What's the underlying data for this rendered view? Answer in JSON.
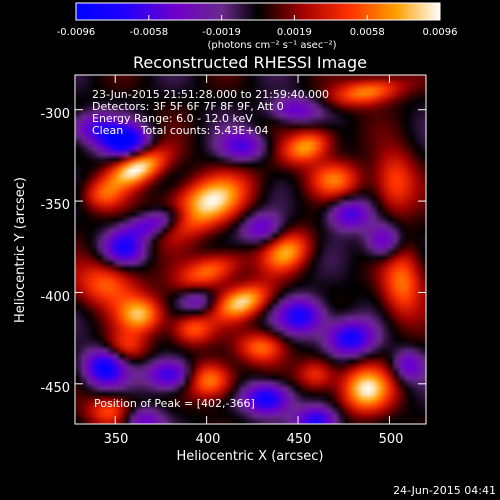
{
  "colorbar": {
    "tick_labels": [
      "-0.0096",
      "-0.0058",
      "-0.0019",
      "0.0019",
      "0.0058",
      "0.0096"
    ],
    "units": "(photons cm⁻² s⁻¹ asec⁻²)",
    "range": [
      -0.0096,
      0.0096
    ]
  },
  "info": {
    "line1": "23-Jun-2015 21:51:28.000 to 21:59:40.000",
    "line2": "Detectors: 3F 5F 6F 7F 8F 9F, Att 0",
    "line3": "Energy Range: 6.0 - 12.0 keV",
    "line4": "Clean     Total counts: 5.43E+04",
    "peak": "Position of Peak = [402,-366]"
  },
  "footer": {
    "date": "24-Jun-2015 04:41"
  },
  "colors": {
    "background": "#000000",
    "text": "#ffffff"
  },
  "chart_data": {
    "type": "heatmap",
    "title": "Reconstructed RHESSI Image",
    "xlabel": "Heliocentric X (arcsec)",
    "ylabel": "Heliocentric Y (arcsec)",
    "xlim": [
      328,
      520
    ],
    "ylim": [
      -472,
      -281
    ],
    "x_ticks": [
      350,
      400,
      450,
      500
    ],
    "y_ticks": [
      -300,
      -350,
      -400,
      -450
    ],
    "grid": false,
    "colorscale": "rainbow-to-hot",
    "peak": [
      402,
      -366
    ],
    "blobs": [
      {
        "x": 362,
        "y": -332,
        "amp": 0.0096,
        "sx": 12,
        "sy": 6,
        "rot": -25
      },
      {
        "x": 398,
        "y": -352,
        "amp": 0.0096,
        "sx": 18,
        "sy": 9,
        "rot": -25
      },
      {
        "x": 455,
        "y": -320,
        "amp": 0.0075,
        "sx": 10,
        "sy": 6,
        "rot": -20
      },
      {
        "x": 488,
        "y": -290,
        "amp": 0.007,
        "sx": 14,
        "sy": 5,
        "rot": -10
      },
      {
        "x": 343,
        "y": -347,
        "amp": 0.0045,
        "sx": 8,
        "sy": 6,
        "rot": 0
      },
      {
        "x": 345,
        "y": -395,
        "amp": 0.0058,
        "sx": 12,
        "sy": 9,
        "rot": 0
      },
      {
        "x": 402,
        "y": -388,
        "amp": 0.0065,
        "sx": 13,
        "sy": 6,
        "rot": -20
      },
      {
        "x": 420,
        "y": -405,
        "amp": 0.0085,
        "sx": 11,
        "sy": 6,
        "rot": -20
      },
      {
        "x": 444,
        "y": -378,
        "amp": 0.0068,
        "sx": 10,
        "sy": 7,
        "rot": -30
      },
      {
        "x": 470,
        "y": -338,
        "amp": 0.0058,
        "sx": 10,
        "sy": 7,
        "rot": 0
      },
      {
        "x": 503,
        "y": -340,
        "amp": 0.0056,
        "sx": 8,
        "sy": 12,
        "rot": 0
      },
      {
        "x": 507,
        "y": -395,
        "amp": 0.0062,
        "sx": 8,
        "sy": 14,
        "rot": 0
      },
      {
        "x": 364,
        "y": -412,
        "amp": 0.0075,
        "sx": 9,
        "sy": 7,
        "rot": 0
      },
      {
        "x": 392,
        "y": -420,
        "amp": 0.0058,
        "sx": 8,
        "sy": 6,
        "rot": 0
      },
      {
        "x": 356,
        "y": -430,
        "amp": 0.0045,
        "sx": 8,
        "sy": 6,
        "rot": 0
      },
      {
        "x": 402,
        "y": -448,
        "amp": 0.0075,
        "sx": 9,
        "sy": 7,
        "rot": 0
      },
      {
        "x": 430,
        "y": -430,
        "amp": 0.0062,
        "sx": 9,
        "sy": 6,
        "rot": 0
      },
      {
        "x": 487,
        "y": -453,
        "amp": 0.0088,
        "sx": 10,
        "sy": 9,
        "rot": 0
      },
      {
        "x": 460,
        "y": -445,
        "amp": 0.005,
        "sx": 7,
        "sy": 6,
        "rot": 0
      },
      {
        "x": 347,
        "y": -465,
        "amp": 0.0055,
        "sx": 9,
        "sy": 6,
        "rot": 0
      },
      {
        "x": 355,
        "y": -317,
        "amp": -0.0096,
        "sx": 9,
        "sy": 6,
        "rot": 0
      },
      {
        "x": 338,
        "y": -310,
        "amp": -0.0055,
        "sx": 9,
        "sy": 6,
        "rot": 0
      },
      {
        "x": 372,
        "y": -362,
        "amp": -0.007,
        "sx": 14,
        "sy": 5,
        "rot": -20
      },
      {
        "x": 420,
        "y": -320,
        "amp": -0.0055,
        "sx": 9,
        "sy": 6,
        "rot": 0
      },
      {
        "x": 448,
        "y": -300,
        "amp": -0.005,
        "sx": 10,
        "sy": 5,
        "rot": 0
      },
      {
        "x": 478,
        "y": -357,
        "amp": -0.006,
        "sx": 8,
        "sy": 6,
        "rot": 0
      },
      {
        "x": 430,
        "y": -365,
        "amp": -0.005,
        "sx": 8,
        "sy": 6,
        "rot": 0
      },
      {
        "x": 452,
        "y": -413,
        "amp": -0.0075,
        "sx": 9,
        "sy": 7,
        "rot": 0
      },
      {
        "x": 478,
        "y": -425,
        "amp": -0.008,
        "sx": 9,
        "sy": 7,
        "rot": 0
      },
      {
        "x": 433,
        "y": -458,
        "amp": -0.0088,
        "sx": 9,
        "sy": 6,
        "rot": 0
      },
      {
        "x": 380,
        "y": -445,
        "amp": -0.0075,
        "sx": 9,
        "sy": 6,
        "rot": 0
      },
      {
        "x": 344,
        "y": -441,
        "amp": -0.0085,
        "sx": 8,
        "sy": 7,
        "rot": 0
      },
      {
        "x": 355,
        "y": -377,
        "amp": -0.0065,
        "sx": 8,
        "sy": 6,
        "rot": 0
      },
      {
        "x": 395,
        "y": -405,
        "amp": -0.004,
        "sx": 7,
        "sy": 5,
        "rot": 0
      },
      {
        "x": 497,
        "y": -372,
        "amp": -0.006,
        "sx": 7,
        "sy": 7,
        "rot": 0
      },
      {
        "x": 460,
        "y": -470,
        "amp": -0.0075,
        "sx": 8,
        "sy": 5,
        "rot": 0
      },
      {
        "x": 365,
        "y": -470,
        "amp": -0.005,
        "sx": 8,
        "sy": 5,
        "rot": 0
      },
      {
        "x": 510,
        "y": -440,
        "amp": -0.005,
        "sx": 6,
        "sy": 6,
        "rot": 0
      }
    ]
  }
}
